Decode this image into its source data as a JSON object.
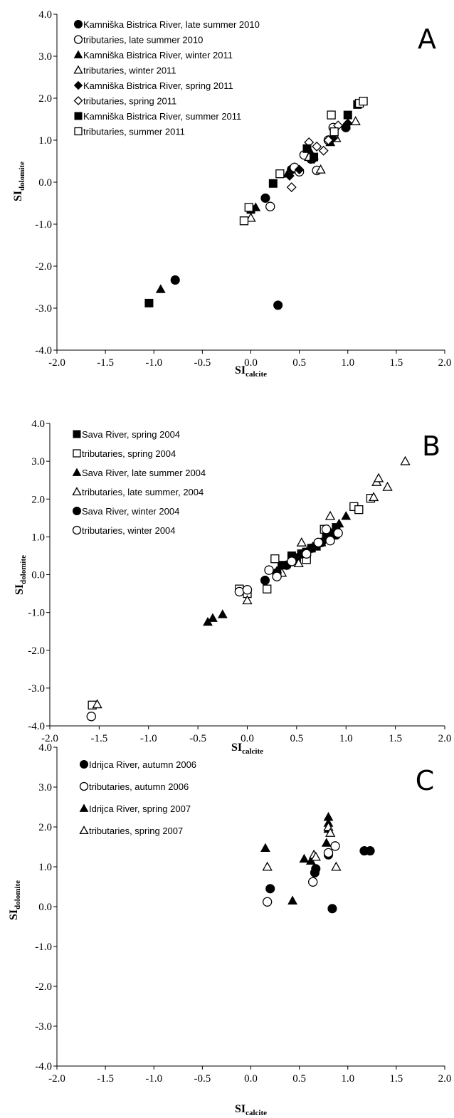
{
  "chart_data": [
    {
      "type": "scatter",
      "panel_label": "A",
      "xlabel_main": "SI",
      "xlabel_sub": "calcite",
      "ylabel_main": "SI",
      "ylabel_sub": "dolomite",
      "xlim": [
        -2.0,
        2.0
      ],
      "ylim": [
        -4.0,
        4.0
      ],
      "xticks": [
        "-2.0",
        "-1.5",
        "-1.0",
        "-0.5",
        "0.0",
        "0.5",
        "1.0",
        "1.5",
        "2.0"
      ],
      "yticks": [
        "-4.0",
        "-3.0",
        "-2.0",
        "-1.0",
        "0.0",
        "1.0",
        "2.0",
        "3.0",
        "4.0"
      ],
      "xtick_values": [
        -2.0,
        -1.5,
        -1.0,
        -0.5,
        0.0,
        0.5,
        1.0,
        1.5,
        2.0
      ],
      "ytick_values": [
        -4.0,
        -3.0,
        -2.0,
        -1.0,
        0.0,
        1.0,
        2.0,
        3.0,
        4.0
      ],
      "series": [
        {
          "name": "Kamniška Bistrica River, late summer 2010",
          "marker": "circle",
          "fill": true,
          "points": [
            [
              -0.78,
              -2.33
            ],
            [
              0.28,
              -2.93
            ],
            [
              0.15,
              -0.38
            ],
            [
              0.62,
              0.55
            ],
            [
              0.42,
              0.3
            ],
            [
              0.98,
              1.3
            ]
          ]
        },
        {
          "name": "tributaries, late summer 2010",
          "marker": "circle",
          "fill": false,
          "points": [
            [
              0.2,
              -0.58
            ],
            [
              0.55,
              0.65
            ],
            [
              0.45,
              0.35
            ],
            [
              0.68,
              0.28
            ],
            [
              0.8,
              1.0
            ],
            [
              0.85,
              1.3
            ],
            [
              0.5,
              0.25
            ]
          ]
        },
        {
          "name": "Kamniška Bistrica River, winter 2011",
          "marker": "triangle",
          "fill": true,
          "points": [
            [
              -0.93,
              -2.55
            ],
            [
              0.05,
              -0.6
            ],
            [
              0.38,
              0.2
            ],
            [
              0.62,
              0.7
            ],
            [
              0.82,
              0.95
            ],
            [
              0.98,
              1.35
            ]
          ]
        },
        {
          "name": "tributaries, winter 2011",
          "marker": "triangle",
          "fill": false,
          "points": [
            [
              0.0,
              -0.85
            ],
            [
              0.72,
              0.3
            ],
            [
              1.08,
              1.45
            ],
            [
              0.88,
              1.05
            ],
            [
              0.6,
              0.6
            ]
          ]
        },
        {
          "name": "Kamniška Bistrica River, spring 2011",
          "marker": "diamond",
          "fill": true,
          "points": [
            [
              0.4,
              0.15
            ],
            [
              0.5,
              0.3
            ],
            [
              0.65,
              0.55
            ],
            [
              0.85,
              1.05
            ],
            [
              1.0,
              1.4
            ]
          ]
        },
        {
          "name": "tributaries, spring 2011",
          "marker": "diamond",
          "fill": false,
          "points": [
            [
              0.42,
              -0.12
            ],
            [
              0.6,
              0.95
            ],
            [
              0.68,
              0.85
            ],
            [
              0.75,
              0.75
            ],
            [
              0.9,
              1.35
            ],
            [
              0.8,
              1.0
            ]
          ]
        },
        {
          "name": "Kamniška Bistrica River, summer 2011",
          "marker": "square",
          "fill": true,
          "points": [
            [
              -1.05,
              -2.88
            ],
            [
              0.0,
              -0.65
            ],
            [
              0.23,
              -0.03
            ],
            [
              0.58,
              0.8
            ],
            [
              1.0,
              1.6
            ],
            [
              1.1,
              1.85
            ],
            [
              0.65,
              0.6
            ]
          ]
        },
        {
          "name": "tributaries, summer 2011",
          "marker": "square",
          "fill": false,
          "points": [
            [
              -0.07,
              -0.92
            ],
            [
              -0.02,
              -0.6
            ],
            [
              0.3,
              0.2
            ],
            [
              0.83,
              1.6
            ],
            [
              1.12,
              1.88
            ],
            [
              1.16,
              1.93
            ],
            [
              0.86,
              1.2
            ]
          ]
        }
      ]
    },
    {
      "type": "scatter",
      "panel_label": "B",
      "xlabel_main": "SI",
      "xlabel_sub": "calcite",
      "ylabel_main": "SI",
      "ylabel_sub": "dolomite",
      "xlim": [
        -2.0,
        2.0
      ],
      "ylim": [
        -4.0,
        4.0
      ],
      "xticks": [
        "-2.0",
        "-1.5",
        "-1.0",
        "-0.5",
        "0.0",
        "0.5",
        "1.0",
        "1.5",
        "2.0"
      ],
      "yticks": [
        "-4.0",
        "-3.0",
        "-2.0",
        "-1.0",
        "0.0",
        "1.0",
        "2.0",
        "3.0",
        "4.0"
      ],
      "xtick_values": [
        -2.0,
        -1.5,
        -1.0,
        -0.5,
        0.0,
        0.5,
        1.0,
        1.5,
        2.0
      ],
      "ytick_values": [
        -4.0,
        -3.0,
        -2.0,
        -1.0,
        0.0,
        1.0,
        2.0,
        3.0,
        4.0
      ],
      "series": [
        {
          "name": "Sava River, spring 2004",
          "marker": "square",
          "fill": true,
          "points": [
            [
              0.45,
              0.5
            ],
            [
              0.5,
              0.45
            ],
            [
              0.55,
              0.55
            ],
            [
              0.6,
              0.6
            ],
            [
              0.65,
              0.7
            ],
            [
              0.7,
              0.75
            ],
            [
              0.8,
              1.0
            ],
            [
              0.9,
              1.25
            ],
            [
              0.35,
              0.25
            ]
          ]
        },
        {
          "name": "tributaries, spring 2004",
          "marker": "square",
          "fill": false,
          "points": [
            [
              -1.57,
              -3.45
            ],
            [
              -0.08,
              -0.38
            ],
            [
              0.0,
              -0.5
            ],
            [
              0.2,
              -0.38
            ],
            [
              0.28,
              0.42
            ],
            [
              0.55,
              0.55
            ],
            [
              0.78,
              1.2
            ],
            [
              1.08,
              1.8
            ],
            [
              1.13,
              1.72
            ],
            [
              1.25,
              2.02
            ],
            [
              0.6,
              0.4
            ]
          ]
        },
        {
          "name": "Sava River, late summer 2004",
          "marker": "triangle",
          "fill": true,
          "points": [
            [
              -0.4,
              -1.25
            ],
            [
              -0.35,
              -1.15
            ],
            [
              -0.25,
              -1.05
            ],
            [
              0.3,
              0.1
            ],
            [
              0.5,
              0.4
            ],
            [
              0.6,
              0.6
            ],
            [
              0.75,
              0.85
            ],
            [
              0.85,
              1.1
            ],
            [
              0.93,
              1.35
            ],
            [
              1.0,
              1.55
            ]
          ]
        },
        {
          "name": "tributaries, late summer, 2004",
          "marker": "triangle",
          "fill": false,
          "points": [
            [
              -1.52,
              -3.43
            ],
            [
              0.0,
              -0.68
            ],
            [
              0.35,
              0.05
            ],
            [
              0.52,
              0.3
            ],
            [
              0.84,
              1.55
            ],
            [
              1.28,
              2.05
            ],
            [
              1.31,
              2.45
            ],
            [
              1.33,
              2.55
            ],
            [
              1.42,
              2.32
            ],
            [
              1.6,
              3.0
            ],
            [
              0.55,
              0.85
            ]
          ]
        },
        {
          "name": "Sava River, winter 2004",
          "marker": "circle",
          "fill": true,
          "points": [
            [
              0.18,
              -0.15
            ],
            [
              0.3,
              0.05
            ],
            [
              0.4,
              0.25
            ],
            [
              0.55,
              0.55
            ],
            [
              0.65,
              0.7
            ],
            [
              0.75,
              0.85
            ],
            [
              0.9,
              1.05
            ]
          ]
        },
        {
          "name": "tributaries, winter 2004",
          "marker": "circle",
          "fill": false,
          "points": [
            [
              -1.58,
              -3.75
            ],
            [
              -0.08,
              -0.45
            ],
            [
              0.0,
              -0.4
            ],
            [
              0.22,
              0.12
            ],
            [
              0.3,
              -0.05
            ],
            [
              0.45,
              0.35
            ],
            [
              0.6,
              0.55
            ],
            [
              0.72,
              0.85
            ],
            [
              0.84,
              0.9
            ],
            [
              0.92,
              1.1
            ],
            [
              0.8,
              1.2
            ]
          ]
        }
      ]
    },
    {
      "type": "scatter",
      "panel_label": "C",
      "xlabel_main": "SI",
      "xlabel_sub": "calcite",
      "ylabel_main": "SI",
      "ylabel_sub": "dolomite",
      "xlim": [
        -2.0,
        2.0
      ],
      "ylim": [
        -4.0,
        4.0
      ],
      "xticks": [
        "-2.0",
        "-1.5",
        "-1.0",
        "-0.5",
        "0.0",
        "0.5",
        "1.0",
        "1.5",
        "2.0"
      ],
      "yticks": [
        "-4.0",
        "-3.0",
        "-2.0",
        "-1.0",
        "0.0",
        "1.0",
        "2.0",
        "3.0",
        "4.0"
      ],
      "xtick_values": [
        -2.0,
        -1.5,
        -1.0,
        -0.5,
        0.0,
        0.5,
        1.0,
        1.5,
        2.0
      ],
      "ytick_values": [
        -4.0,
        -3.0,
        -2.0,
        -1.0,
        0.0,
        1.0,
        2.0,
        3.0,
        4.0
      ],
      "series": [
        {
          "name": "Idrijca River, autumn 2006",
          "marker": "circle",
          "fill": true,
          "points": [
            [
              0.2,
              0.45
            ],
            [
              0.66,
              0.85
            ],
            [
              0.67,
              0.95
            ],
            [
              0.8,
              1.3
            ],
            [
              0.84,
              -0.05
            ],
            [
              1.17,
              1.4
            ],
            [
              1.23,
              1.4
            ]
          ]
        },
        {
          "name": "tributaries, autumn 2006",
          "marker": "circle",
          "fill": false,
          "points": [
            [
              0.17,
              0.12
            ],
            [
              0.64,
              0.62
            ],
            [
              0.8,
              1.35
            ],
            [
              0.87,
              1.52
            ]
          ]
        },
        {
          "name": "Idrijca River, spring 2007",
          "marker": "triangle",
          "fill": true,
          "points": [
            [
              0.15,
              1.47
            ],
            [
              0.43,
              0.15
            ],
            [
              0.55,
              1.2
            ],
            [
              0.62,
              1.15
            ],
            [
              0.78,
              1.6
            ],
            [
              0.8,
              2.25
            ],
            [
              0.8,
              2.1
            ],
            [
              0.8,
              1.95
            ]
          ]
        },
        {
          "name": "tributaries, spring 2007",
          "marker": "triangle",
          "fill": false,
          "points": [
            [
              0.17,
              1.0
            ],
            [
              0.65,
              1.3
            ],
            [
              0.67,
              1.25
            ],
            [
              0.8,
              2.0
            ],
            [
              0.82,
              1.85
            ],
            [
              0.88,
              1.0
            ]
          ]
        }
      ]
    }
  ]
}
